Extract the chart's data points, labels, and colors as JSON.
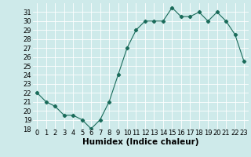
{
  "x": [
    0,
    1,
    2,
    3,
    4,
    5,
    6,
    7,
    8,
    9,
    10,
    11,
    12,
    13,
    14,
    15,
    16,
    17,
    18,
    19,
    20,
    21,
    22,
    23
  ],
  "y": [
    22,
    21,
    20.5,
    19.5,
    19.5,
    19,
    18,
    19,
    21,
    24,
    27,
    29,
    30,
    30,
    30,
    31.5,
    30.5,
    30.5,
    31,
    30,
    31,
    30,
    28.5,
    25.5
  ],
  "xlabel": "Humidex (Indice chaleur)",
  "ylim": [
    18,
    32
  ],
  "xlim": [
    -0.5,
    23.5
  ],
  "yticks": [
    18,
    19,
    20,
    21,
    22,
    23,
    24,
    25,
    26,
    27,
    28,
    29,
    30,
    31
  ],
  "xticks": [
    0,
    1,
    2,
    3,
    4,
    5,
    6,
    7,
    8,
    9,
    10,
    11,
    12,
    13,
    14,
    15,
    16,
    17,
    18,
    19,
    20,
    21,
    22,
    23
  ],
  "line_color": "#1a6b5a",
  "marker": "D",
  "marker_size": 2.2,
  "bg_color": "#ceeaea",
  "grid_color": "#ffffff",
  "tick_fontsize": 6,
  "xlabel_fontsize": 7.5
}
